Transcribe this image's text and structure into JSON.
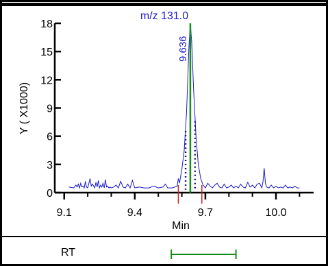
{
  "chart_data": {
    "type": "line",
    "title": "m/z  131.0",
    "peak_label": "9.636",
    "xlabel": "Min",
    "ylabel": "Y ( X1000)",
    "xlim": [
      9.06,
      10.16
    ],
    "ylim": [
      0,
      18
    ],
    "x_ticks": [
      {
        "value": 9.1,
        "label": "9.1"
      },
      {
        "value": 9.4,
        "label": "9.4"
      },
      {
        "value": 9.7,
        "label": "9.7"
      },
      {
        "value": 10.0,
        "label": "10.0"
      }
    ],
    "y_ticks": [
      {
        "value": 0,
        "label": "0"
      },
      {
        "value": 3,
        "label": "3"
      },
      {
        "value": 6,
        "label": "6"
      },
      {
        "value": 9,
        "label": "9"
      },
      {
        "value": 12,
        "label": "12"
      },
      {
        "value": 15,
        "label": "15"
      },
      {
        "value": 18,
        "label": "18"
      }
    ],
    "series": [
      {
        "color": "#1a1acc",
        "x": [
          9.12,
          9.14,
          9.15,
          9.155,
          9.16,
          9.165,
          9.17,
          9.175,
          9.18,
          9.185,
          9.19,
          9.195,
          9.2,
          9.21,
          9.215,
          9.22,
          9.23,
          9.235,
          9.24,
          9.245,
          9.25,
          9.255,
          9.26,
          9.265,
          9.27,
          9.275,
          9.28,
          9.285,
          9.29,
          9.295,
          9.3,
          9.31,
          9.32,
          9.33,
          9.34,
          9.35,
          9.36,
          9.37,
          9.38,
          9.39,
          9.4,
          9.42,
          9.44,
          9.46,
          9.48,
          9.5,
          9.52,
          9.53,
          9.54,
          9.56,
          9.58,
          9.585,
          9.59,
          9.6,
          9.61,
          9.62,
          9.625,
          9.63,
          9.636,
          9.642,
          9.65,
          9.66,
          9.67,
          9.68,
          9.69,
          9.7,
          9.71,
          9.72,
          9.73,
          9.74,
          9.75,
          9.76,
          9.77,
          9.78,
          9.79,
          9.8,
          9.81,
          9.82,
          9.83,
          9.84,
          9.85,
          9.86,
          9.87,
          9.88,
          9.89,
          9.9,
          9.91,
          9.92,
          9.93,
          9.94,
          9.945,
          9.95,
          9.955,
          9.96,
          9.97,
          9.98,
          9.99,
          10.0,
          10.01,
          10.02,
          10.03,
          10.04,
          10.05,
          10.06,
          10.07,
          10.08,
          10.09,
          10.1
        ],
        "y": [
          0.6,
          0.5,
          0.8,
          0.6,
          0.9,
          0.5,
          1.0,
          0.6,
          0.7,
          0.5,
          1.2,
          0.6,
          0.5,
          1.5,
          0.7,
          0.9,
          0.5,
          1.1,
          0.6,
          1.3,
          0.5,
          0.8,
          0.6,
          1.0,
          0.5,
          1.4,
          0.6,
          0.7,
          0.5,
          0.6,
          0.5,
          0.6,
          0.8,
          0.5,
          1.2,
          0.6,
          0.5,
          0.9,
          0.5,
          1.3,
          0.5,
          0.6,
          0.5,
          0.5,
          0.7,
          0.5,
          0.6,
          0.9,
          0.5,
          0.5,
          0.7,
          1.5,
          1.0,
          2.5,
          4.5,
          8.5,
          12.0,
          15.5,
          18.0,
          16.0,
          11.0,
          6.0,
          3.0,
          1.5,
          0.8,
          0.5,
          1.0,
          0.7,
          0.5,
          0.8,
          1.0,
          0.6,
          0.5,
          0.9,
          0.5,
          0.6,
          0.8,
          0.5,
          0.7,
          0.5,
          0.9,
          0.6,
          0.5,
          1.1,
          0.6,
          0.8,
          0.5,
          0.9,
          1.0,
          0.5,
          1.2,
          2.6,
          1.0,
          0.6,
          0.5,
          0.8,
          0.5,
          0.7,
          0.5,
          0.6,
          0.5,
          0.8,
          0.5,
          0.6,
          0.5,
          0.7,
          0.5,
          0.5
        ]
      }
    ],
    "peak_marker_x": 9.636,
    "integration_start_x": 9.585,
    "integration_end_x": 9.685,
    "grid": false
  },
  "rt_panel": {
    "label": "RT",
    "range_start_x": 9.555,
    "range_end_x": 9.83
  },
  "colors": {
    "trace": "#1a1acc",
    "peak_marker": "#1a8c1a",
    "baseline_marker": "#cc2222",
    "fill_dots": "#1a1a80",
    "rt_bar": "#1a8c1a",
    "frame": "#000000"
  }
}
